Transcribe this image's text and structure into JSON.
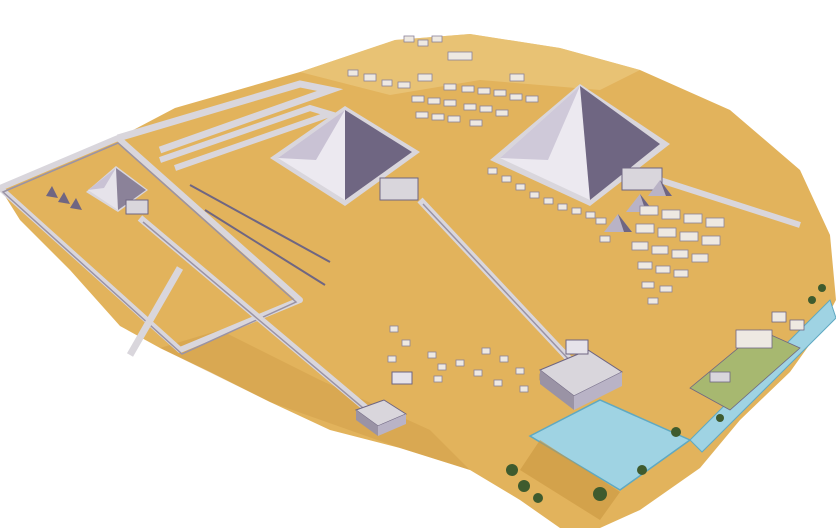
{
  "scene": {
    "kind": "illustration",
    "subject": "giza-pyramid-complex",
    "colors": {
      "background": "#ffffff",
      "sand": "#e2b35c",
      "sand_dark": "#c99640",
      "sand_light": "#eccb83",
      "pyramid_light": "#e6e3ea",
      "pyramid_mid": "#b9b3c6",
      "pyramid_dark": "#6f6682",
      "wall": "#d9d6dc",
      "wall_shadow": "#9a93a5",
      "water": "#9fd3e3",
      "water_dark": "#5fa9c2",
      "tree": "#3f5b2e",
      "field": "#a7b870"
    }
  }
}
